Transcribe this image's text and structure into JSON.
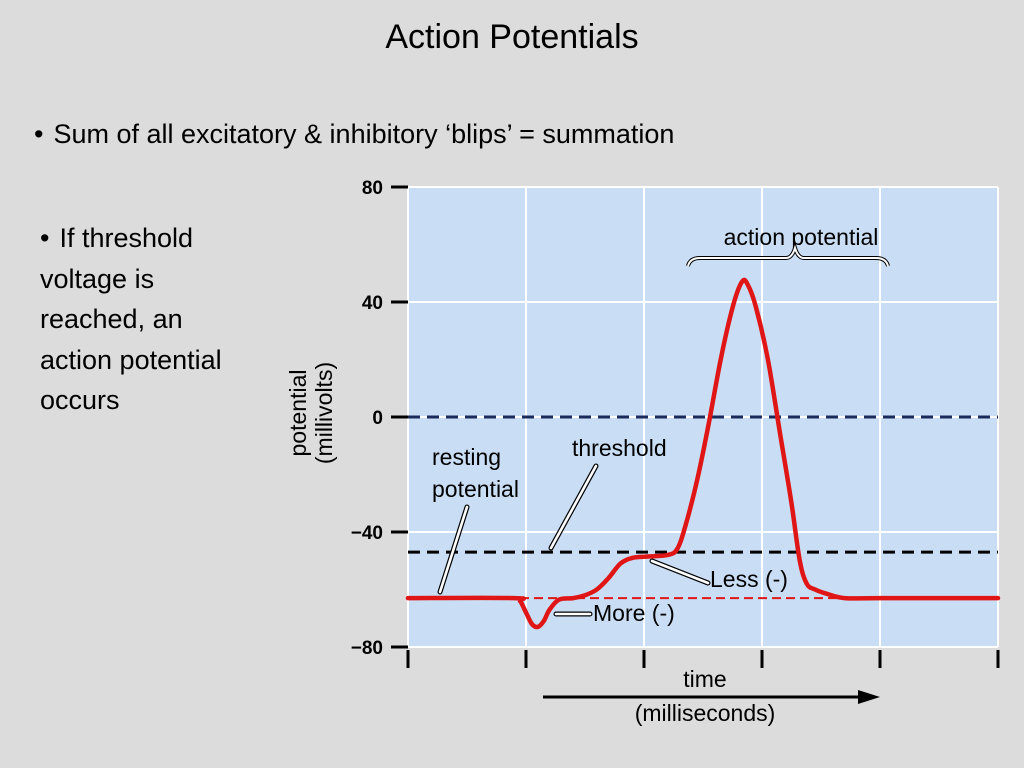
{
  "slide": {
    "title": "Action Potentials",
    "bullets": [
      "Sum of all excitatory & inhibitory ‘blips’ = summation",
      "If threshold voltage is reached, an action potential occurs"
    ]
  },
  "chart_data": {
    "type": "line",
    "ylabel_lines": [
      "potential",
      "(millivolts)"
    ],
    "xlabel_lines": [
      "time",
      "(milliseconds)"
    ],
    "ylim": [
      -80,
      80
    ],
    "yticks": [
      80,
      40,
      0,
      -40,
      -80
    ],
    "ytick_labels": [
      "80",
      "40",
      "0",
      "−40",
      "−80"
    ],
    "xlim": [
      0,
      5
    ],
    "xticks": [
      0,
      1,
      2,
      3,
      4,
      5
    ],
    "grid": true,
    "series": [
      {
        "color": "#e01515",
        "points": [
          [
            0.0,
            -63
          ],
          [
            0.9,
            -63
          ],
          [
            0.95,
            -64
          ],
          [
            1.0,
            -68
          ],
          [
            1.05,
            -72
          ],
          [
            1.1,
            -73
          ],
          [
            1.15,
            -71
          ],
          [
            1.2,
            -67
          ],
          [
            1.28,
            -63.5
          ],
          [
            1.4,
            -63
          ],
          [
            1.5,
            -62
          ],
          [
            1.6,
            -60
          ],
          [
            1.7,
            -56
          ],
          [
            1.8,
            -51
          ],
          [
            1.9,
            -49
          ],
          [
            2.05,
            -48.5
          ],
          [
            2.2,
            -48
          ],
          [
            2.28,
            -46
          ],
          [
            2.35,
            -38
          ],
          [
            2.45,
            -22
          ],
          [
            2.55,
            -2
          ],
          [
            2.65,
            20
          ],
          [
            2.75,
            38
          ],
          [
            2.83,
            47
          ],
          [
            2.88,
            46
          ],
          [
            2.95,
            38
          ],
          [
            3.05,
            20
          ],
          [
            3.15,
            -5
          ],
          [
            3.25,
            -30
          ],
          [
            3.32,
            -50
          ],
          [
            3.38,
            -58
          ],
          [
            3.45,
            -60
          ],
          [
            3.55,
            -61.5
          ],
          [
            3.7,
            -63
          ],
          [
            4.0,
            -63
          ],
          [
            5.0,
            -63
          ]
        ]
      }
    ],
    "reference_lines": [
      {
        "name": "zero",
        "y": 0,
        "color": "#1a2a5a",
        "style": "dashed"
      },
      {
        "name": "threshold",
        "y": -47,
        "color": "#000000",
        "style": "dashed"
      },
      {
        "name": "resting",
        "y": -63,
        "color": "#e01515",
        "style": "dashed"
      }
    ],
    "annotations": {
      "action_potential": "action potential",
      "resting_potential_lines": [
        "resting",
        "potential"
      ],
      "threshold": "threshold",
      "less": "Less (-)",
      "more": "More (-)"
    },
    "colors": {
      "plot_background": "#c9def4",
      "grid": "#ffffff",
      "trace": "#e01515"
    }
  }
}
